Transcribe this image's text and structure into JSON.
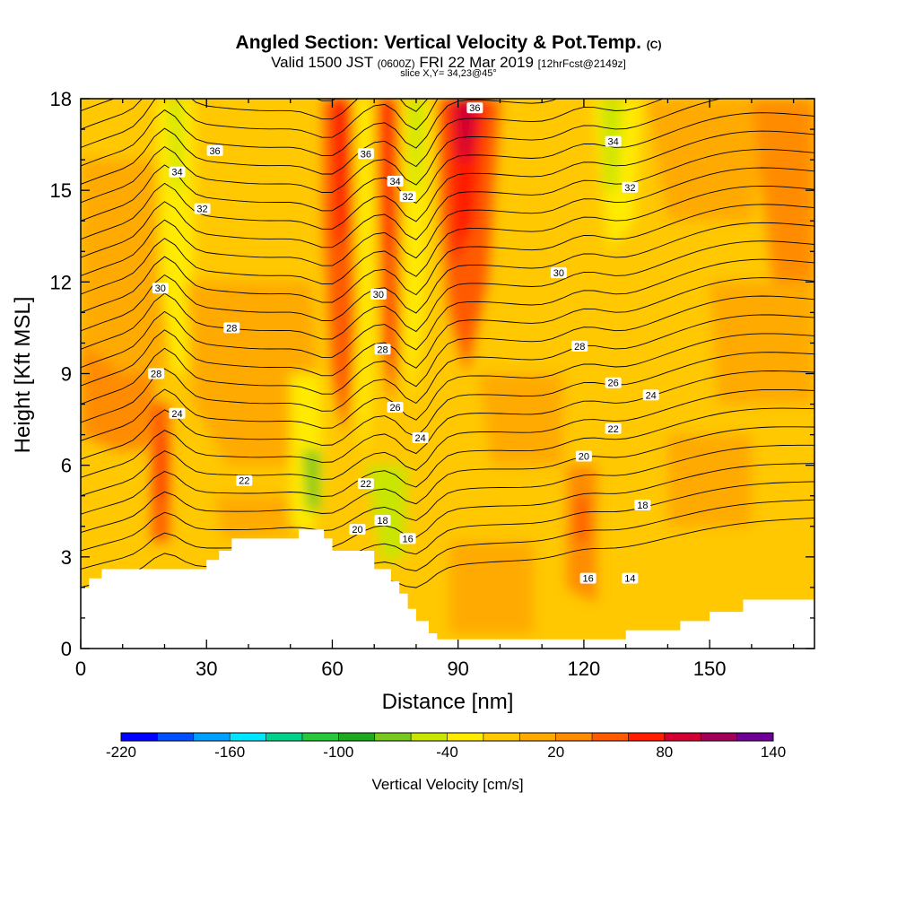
{
  "title": {
    "main": "Angled Section: Vertical Velocity & Pot.Temp.",
    "main_suffix": "(C)",
    "valid_prefix": "Valid 1500 JST",
    "valid_utc": "(0600Z)",
    "valid_date": "FRI 22 Mar 2019",
    "forecast": "[12hrFcst@2149z]",
    "slice": "slice X,Y= 34,23@45°"
  },
  "chart_data": {
    "type": "heatmap",
    "xlabel": "Distance [nm]",
    "ylabel": "Height [Kft MSL]",
    "xlim": [
      0,
      175
    ],
    "ylim": [
      0,
      18
    ],
    "x_ticks": [
      0,
      30,
      60,
      90,
      120,
      150
    ],
    "y_ticks": [
      0,
      3,
      6,
      9,
      12,
      15,
      18
    ],
    "colorbar": {
      "title": "Vertical Velocity [cm/s]",
      "labels": [
        "-220",
        "-160",
        "-100",
        "-40",
        "20",
        "80",
        "140"
      ],
      "min": -220,
      "max": 140,
      "step": 20,
      "colors": [
        "#0000ff",
        "#0050ff",
        "#00a0ff",
        "#00e6ff",
        "#00d28c",
        "#28c83c",
        "#1eaa1e",
        "#78c81e",
        "#c8e600",
        "#ffeb00",
        "#ffc800",
        "#ffaa00",
        "#ff8c00",
        "#ff5a00",
        "#ff1e00",
        "#d20032",
        "#a0005a",
        "#6e0096"
      ]
    },
    "contour_labels": [
      {
        "text": "36",
        "x": 32,
        "y": 16.3
      },
      {
        "text": "34",
        "x": 23,
        "y": 15.6
      },
      {
        "text": "32",
        "x": 29,
        "y": 14.4
      },
      {
        "text": "30",
        "x": 19,
        "y": 11.8
      },
      {
        "text": "28",
        "x": 36,
        "y": 10.5
      },
      {
        "text": "28",
        "x": 18,
        "y": 9.0
      },
      {
        "text": "24",
        "x": 23,
        "y": 7.7
      },
      {
        "text": "22",
        "x": 39,
        "y": 5.5
      },
      {
        "text": "36",
        "x": 68,
        "y": 16.2
      },
      {
        "text": "34",
        "x": 75,
        "y": 15.3
      },
      {
        "text": "32",
        "x": 78,
        "y": 14.8
      },
      {
        "text": "30",
        "x": 71,
        "y": 11.6
      },
      {
        "text": "28",
        "x": 72,
        "y": 9.8
      },
      {
        "text": "26",
        "x": 75,
        "y": 7.9
      },
      {
        "text": "24",
        "x": 81,
        "y": 6.9
      },
      {
        "text": "22",
        "x": 68,
        "y": 5.4
      },
      {
        "text": "20",
        "x": 66,
        "y": 3.9
      },
      {
        "text": "18",
        "x": 72,
        "y": 4.2
      },
      {
        "text": "16",
        "x": 78,
        "y": 3.6
      },
      {
        "text": "36",
        "x": 94,
        "y": 17.7
      },
      {
        "text": "34",
        "x": 127,
        "y": 16.6
      },
      {
        "text": "32",
        "x": 131,
        "y": 15.1
      },
      {
        "text": "30",
        "x": 114,
        "y": 12.3
      },
      {
        "text": "28",
        "x": 119,
        "y": 9.9
      },
      {
        "text": "26",
        "x": 127,
        "y": 8.7
      },
      {
        "text": "24",
        "x": 136,
        "y": 8.3
      },
      {
        "text": "22",
        "x": 127,
        "y": 7.2
      },
      {
        "text": "20",
        "x": 120,
        "y": 6.3
      },
      {
        "text": "18",
        "x": 134,
        "y": 4.7
      },
      {
        "text": "16",
        "x": 121,
        "y": 2.3
      },
      {
        "text": "14",
        "x": 131,
        "y": 2.3
      }
    ]
  }
}
